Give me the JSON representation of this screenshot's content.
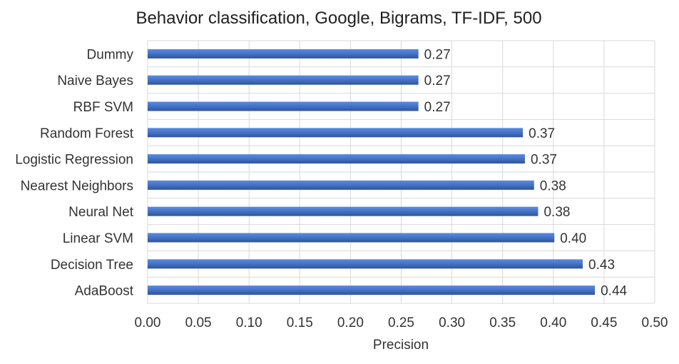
{
  "chart_data": {
    "type": "bar",
    "orientation": "horizontal",
    "title": "Behavior classification, Google, Bigrams, TF-IDF, 500",
    "xlabel": "Precision",
    "ylabel": "",
    "categories": [
      "Dummy",
      "Naive Bayes",
      "RBF SVM",
      "Random Forest",
      "Logistic Regression",
      "Nearest Neighbors",
      "Neural Net",
      "Linear SVM",
      "Decision Tree",
      "AdaBoost"
    ],
    "values": [
      0.267,
      0.267,
      0.267,
      0.37,
      0.372,
      0.381,
      0.385,
      0.401,
      0.429,
      0.441
    ],
    "value_labels": [
      "0.27",
      "0.27",
      "0.27",
      "0.37",
      "0.37",
      "0.38",
      "0.38",
      "0.40",
      "0.43",
      "0.44"
    ],
    "xlim": [
      0,
      0.5
    ],
    "xticks": [
      "0.00",
      "0.05",
      "0.10",
      "0.15",
      "0.20",
      "0.25",
      "0.30",
      "0.35",
      "0.40",
      "0.45",
      "0.50"
    ],
    "grid": true,
    "legend": "none",
    "bar_color": "#4472c4"
  }
}
